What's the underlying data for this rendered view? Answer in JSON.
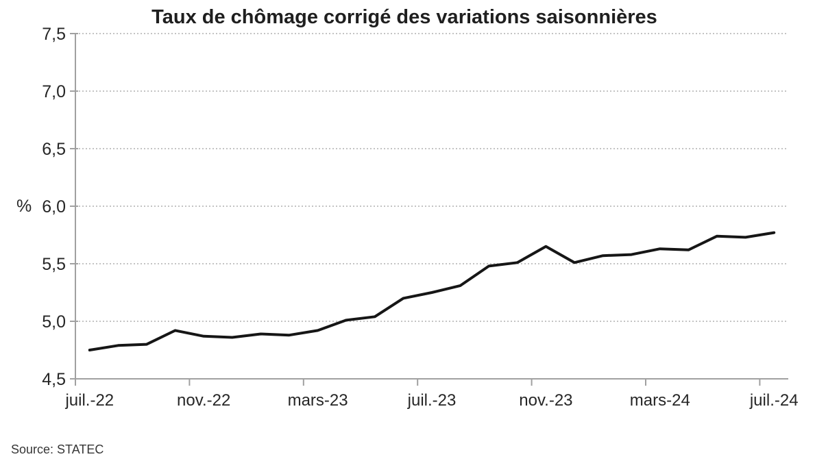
{
  "chart_data": {
    "type": "line",
    "title": "Taux de chômage corrigé des variations saisonnières",
    "ylabel": "%",
    "xlabel": "",
    "source": "Source: STATEC",
    "legend": "none",
    "grid": "horizontal dotted",
    "ylim": [
      4.5,
      7.5
    ],
    "y_tick_step": 0.5,
    "y_tick_labels": [
      "4,5",
      "5,0",
      "5,5",
      "6,0",
      "6,5",
      "7,0",
      "7,5"
    ],
    "x_tick_labels": [
      "juil.-22",
      "nov.-22",
      "mars-23",
      "juil.-23",
      "nov.-23",
      "mars-24",
      "juil.-24"
    ],
    "x": [
      "juil.-22",
      "août-22",
      "sept.-22",
      "oct.-22",
      "nov.-22",
      "déc.-22",
      "janv.-23",
      "févr.-23",
      "mars-23",
      "avr.-23",
      "mai-23",
      "juin-23",
      "juil.-23",
      "août-23",
      "sept.-23",
      "oct.-23",
      "nov.-23",
      "déc.-23",
      "janv.-24",
      "févr.-24",
      "mars-24",
      "avr.-24",
      "mai-24",
      "juin-24",
      "juil.-24"
    ],
    "values": [
      4.75,
      4.79,
      4.8,
      4.92,
      4.87,
      4.86,
      4.89,
      4.88,
      4.92,
      5.01,
      5.04,
      5.2,
      5.25,
      5.31,
      5.48,
      5.51,
      5.65,
      5.51,
      5.57,
      5.58,
      5.63,
      5.62,
      5.74,
      5.73,
      5.77
    ],
    "line_color": "#161616",
    "axis_color": "#a0a0a0",
    "grid_color": "#c3c3c3",
    "text_color": "#262626"
  }
}
